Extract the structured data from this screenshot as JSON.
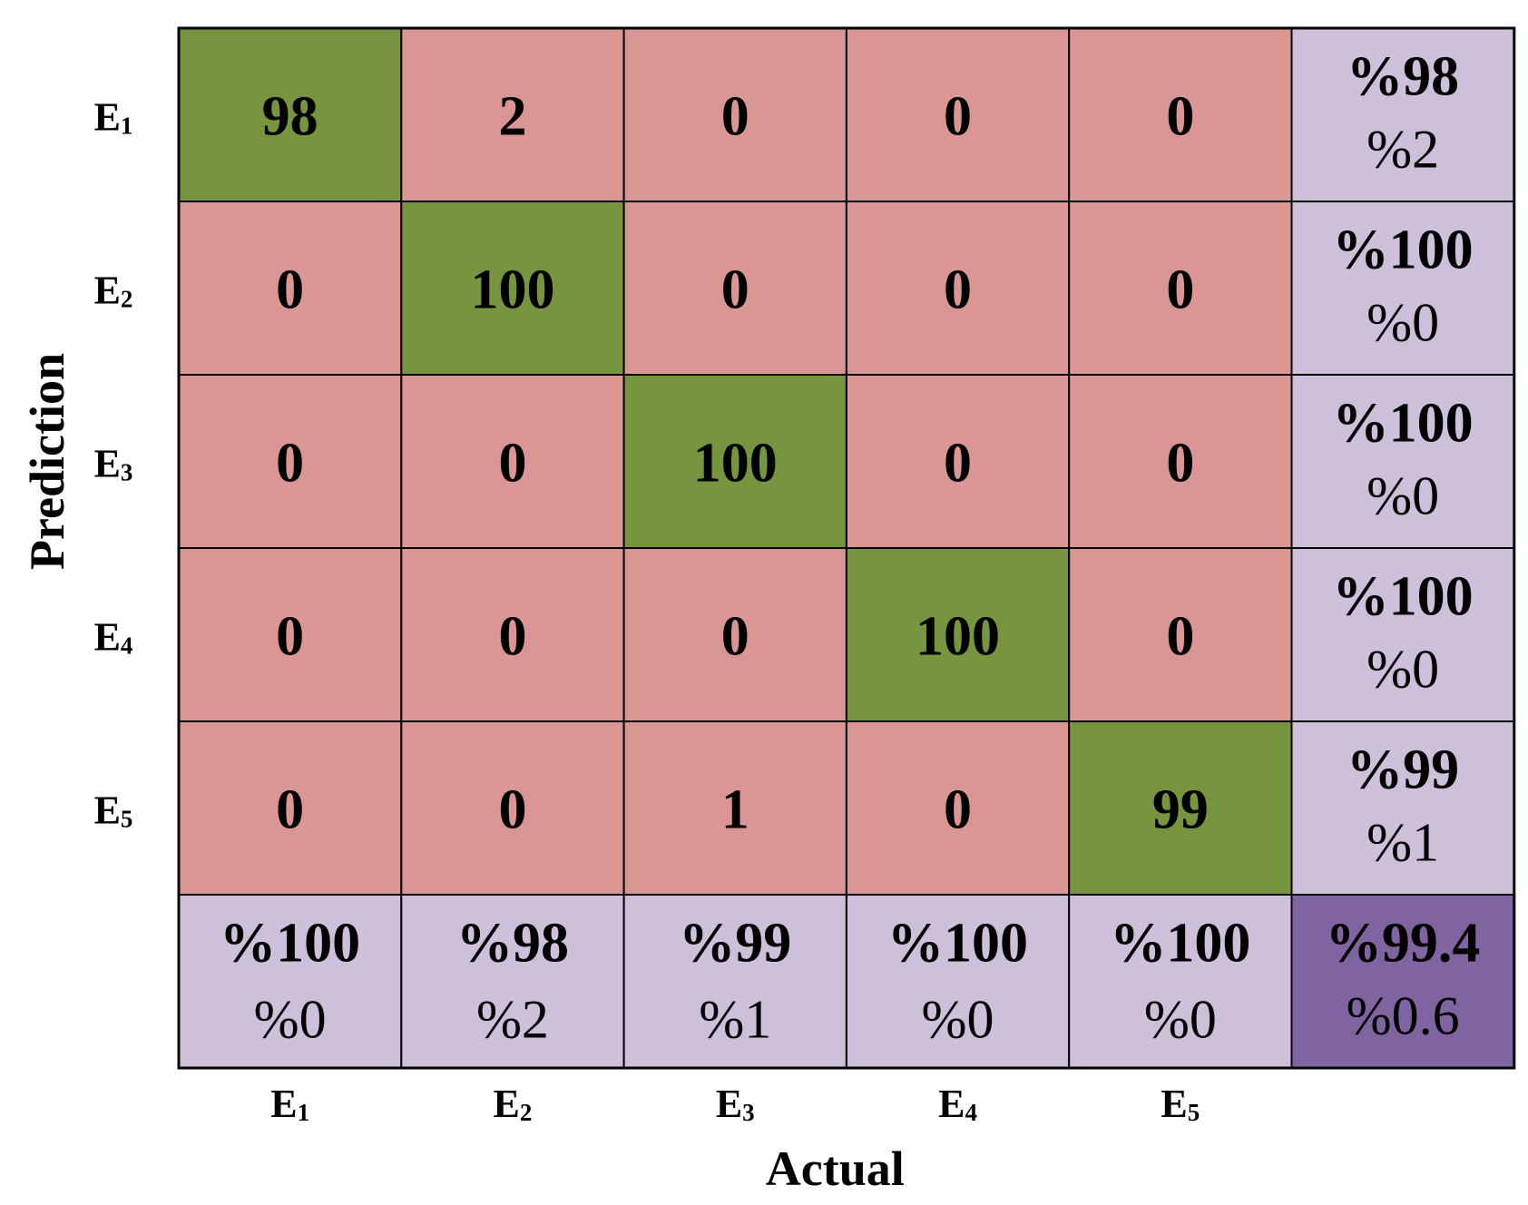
{
  "chart_data": {
    "type": "heatmap",
    "title": "",
    "xlabel": "Actual",
    "ylabel": "Prediction",
    "x_categories": [
      {
        "base": "E",
        "sub": "1"
      },
      {
        "base": "E",
        "sub": "2"
      },
      {
        "base": "E",
        "sub": "3"
      },
      {
        "base": "E",
        "sub": "4"
      },
      {
        "base": "E",
        "sub": "5"
      }
    ],
    "y_categories": [
      {
        "base": "E",
        "sub": "1"
      },
      {
        "base": "E",
        "sub": "2"
      },
      {
        "base": "E",
        "sub": "3"
      },
      {
        "base": "E",
        "sub": "4"
      },
      {
        "base": "E",
        "sub": "5"
      }
    ],
    "matrix": [
      [
        98,
        2,
        0,
        0,
        0
      ],
      [
        0,
        100,
        0,
        0,
        0
      ],
      [
        0,
        0,
        100,
        0,
        0
      ],
      [
        0,
        0,
        0,
        100,
        0
      ],
      [
        0,
        0,
        1,
        0,
        99
      ]
    ],
    "row_summary": [
      {
        "correct": "%98",
        "error": "%2"
      },
      {
        "correct": "%100",
        "error": "%0"
      },
      {
        "correct": "%100",
        "error": "%0"
      },
      {
        "correct": "%100",
        "error": "%0"
      },
      {
        "correct": "%99",
        "error": "%1"
      }
    ],
    "column_summary": [
      {
        "correct": "%100",
        "error": "%0"
      },
      {
        "correct": "%98",
        "error": "%2"
      },
      {
        "correct": "%99",
        "error": "%1"
      },
      {
        "correct": "%100",
        "error": "%0"
      },
      {
        "correct": "%100",
        "error": "%0"
      }
    ],
    "overall": {
      "correct": "%99.4",
      "error": "%0.6"
    },
    "colors": {
      "diagonal": "#77953f",
      "off_diagonal": "#d99692",
      "summary": "#ccc0da",
      "overall": "#8064a2",
      "grid": "#000000"
    }
  }
}
